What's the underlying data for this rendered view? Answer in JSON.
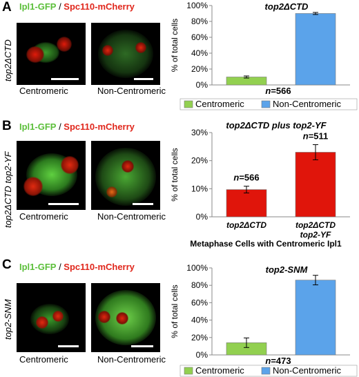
{
  "panels": {
    "A": {
      "letter": "A",
      "legend_green": "Ipl1-GFP",
      "legend_sep": " / ",
      "legend_red": "Spc110-mCherry",
      "strain": "top2ΔCTD",
      "caption_left": "Centromeric",
      "caption_right": "Non-Centromeric"
    },
    "B": {
      "letter": "B",
      "legend_green": "Ipl1-GFP",
      "legend_sep": " / ",
      "legend_red": "Spc110-mCherry",
      "strain": "top2ΔCTD top2-YF",
      "caption_left": "Centromeric",
      "caption_right": "Non-Centromeric"
    },
    "C": {
      "letter": "C",
      "legend_green": "Ipl1-GFP",
      "legend_sep": " / ",
      "legend_red": "Spc110-mCherry",
      "strain": "top2-SNM",
      "caption_left": "Centromeric",
      "caption_right": "Non-Centromeric"
    }
  },
  "colors": {
    "centromeric": "#92d050",
    "non_centromeric": "#5ba3ea",
    "red_bar": "#e0150b",
    "axis": "#888888"
  },
  "chart_data": [
    {
      "id": "A",
      "type": "bar",
      "title": "top2ΔCTD",
      "ylabel": "% of total cells",
      "ylim": [
        0,
        100
      ],
      "yticks": [
        "0%",
        "20%",
        "40%",
        "60%",
        "80%",
        "100%"
      ],
      "categories": [
        "Centromeric",
        "Non-Centromeric"
      ],
      "values": [
        10,
        90
      ],
      "errors": [
        1.3,
        1.3
      ],
      "n_label_prefix": "n",
      "n_label_value": "=566",
      "legend": [
        "Centromeric",
        "Non-Centromeric"
      ]
    },
    {
      "id": "B",
      "type": "bar",
      "title": "top2ΔCTD plus top2-YF",
      "ylabel": "% of total cells",
      "xlabel": "Metaphase Cells with Centromeric Ipl1",
      "ylim": [
        0,
        30
      ],
      "yticks": [
        "0%",
        "10%",
        "20%",
        "30%"
      ],
      "categories": [
        "top2ΔCTD",
        "top2ΔCTD top2-YF"
      ],
      "category_lines": [
        [
          "top2ΔCTD"
        ],
        [
          "top2ΔCTD",
          "top2-YF"
        ]
      ],
      "values": [
        9.7,
        23
      ],
      "errors": [
        1.2,
        2.7
      ],
      "n_labels": [
        "=566",
        "=511"
      ],
      "n_label_prefix": "n"
    },
    {
      "id": "C",
      "type": "bar",
      "title": "top2-SNM",
      "ylabel": "% of total cells",
      "ylim": [
        0,
        100
      ],
      "yticks": [
        "0%",
        "20%",
        "40%",
        "60%",
        "80%",
        "100%"
      ],
      "categories": [
        "Centromeric",
        "Non-Centromeric"
      ],
      "values": [
        14,
        86
      ],
      "errors": [
        5.5,
        5.5
      ],
      "n_label_prefix": "n",
      "n_label_value": "=473",
      "legend": [
        "Centromeric",
        "Non-Centromeric"
      ]
    }
  ]
}
